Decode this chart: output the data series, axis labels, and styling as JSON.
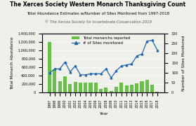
{
  "title": "The Xerces Society Western Monarch Thanksgiving Count",
  "subtitle": "Total Abundance Estimates w/Number of Sites Monitored from 1997-2018",
  "copyright": "© The Xerces Society for Invertebrate Conservation 2019",
  "ylabel_left": "Total Monarch Abundance",
  "ylabel_right": "Number of Sites Monitored",
  "xlabel": "Year",
  "years": [
    1997,
    1998,
    1999,
    2000,
    2001,
    2002,
    2003,
    2004,
    2005,
    2006,
    2007,
    2008,
    2009,
    2010,
    2011,
    2012,
    2013,
    2014,
    2015,
    2016,
    2017,
    2018
  ],
  "monarchs": [
    1200000,
    540000,
    270000,
    390000,
    210000,
    250000,
    230000,
    230000,
    240000,
    240000,
    90000,
    120000,
    35000,
    130000,
    235000,
    175000,
    180000,
    220000,
    270000,
    300000,
    190000,
    25000
  ],
  "sites": [
    100,
    120,
    120,
    155,
    105,
    135,
    90,
    90,
    95,
    95,
    95,
    120,
    75,
    110,
    135,
    140,
    145,
    185,
    195,
    260,
    265,
    215
  ],
  "bar_color": "#6abf4b",
  "line_color": "#2166ac",
  "marker": "^",
  "ylim_left": [
    0,
    1400000
  ],
  "ylim_right": [
    0,
    300
  ],
  "yticks_left": [
    0,
    200000,
    400000,
    600000,
    800000,
    1000000,
    1200000,
    1400000
  ],
  "yticks_right": [
    0,
    50,
    100,
    150,
    200,
    250,
    300
  ],
  "legend_bar_label": "Total monarchs reported",
  "legend_line_label": "# of Sites monitored",
  "background_color": "#f0f0eb",
  "title_fontsize": 5.5,
  "subtitle_fontsize": 4.0,
  "copyright_fontsize": 3.8,
  "axis_fontsize": 4.2,
  "tick_fontsize": 3.5,
  "legend_fontsize": 4.0
}
